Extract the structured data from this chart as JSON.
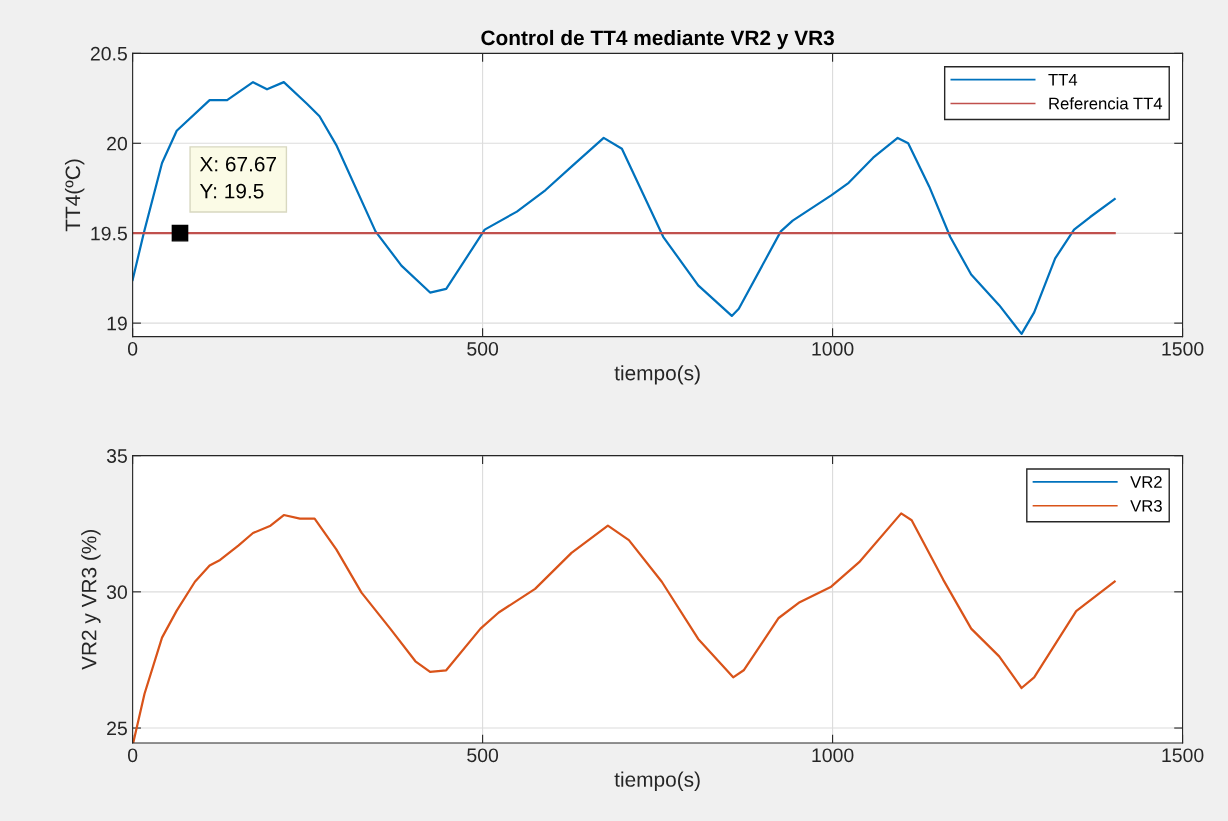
{
  "chart_data": [
    {
      "type": "line",
      "title": "Control de TT4 mediante VR2 y VR3",
      "xlabel": "tiempo(s)",
      "ylabel": "TT4(ºC)",
      "xlim": [
        0,
        1500
      ],
      "xticks": [
        0,
        500,
        1000,
        1500
      ],
      "ylim": [
        18.925,
        20.5
      ],
      "yticks": [
        19,
        19.5,
        20,
        20.5
      ],
      "grid": true,
      "legend": "top right",
      "series": [
        {
          "name": "TT4",
          "color": "#0072bd",
          "x": [
            0,
            16.5,
            42,
            63,
            110,
            135,
            172,
            192,
            216,
            249,
            267,
            291,
            347,
            384,
            425,
            448,
            503,
            549,
            590,
            627,
            673,
            699,
            758,
            808,
            856,
            866,
            926,
            943,
            998,
            1023,
            1058,
            1093,
            1108,
            1138,
            1168,
            1198,
            1238,
            1270,
            1288,
            1318,
            1345,
            1368,
            1403
          ],
          "values": [
            19.24,
            19.51,
            19.89,
            20.07,
            20.24,
            20.24,
            20.34,
            20.3,
            20.34,
            20.22,
            20.15,
            19.99,
            19.51,
            19.32,
            19.17,
            19.19,
            19.52,
            19.62,
            19.74,
            19.87,
            20.03,
            19.97,
            19.48,
            19.21,
            19.04,
            19.08,
            19.51,
            19.57,
            19.71,
            19.78,
            19.92,
            20.03,
            20.0,
            19.76,
            19.48,
            19.27,
            19.1,
            18.94,
            19.06,
            19.36,
            19.52,
            19.59,
            19.69
          ]
        },
        {
          "name": "Referencia TT4",
          "color": "#c0504d",
          "x": [
            0,
            1403
          ],
          "values": [
            19.5,
            19.5
          ]
        }
      ],
      "annotations": [
        {
          "text": "X: 67.67\nY: 19.5",
          "x": 67.67,
          "y": 19.5
        }
      ]
    },
    {
      "type": "line",
      "xlabel": "tiempo(s)",
      "ylabel": "VR2 y VR3 (%)",
      "xlim": [
        0,
        1500
      ],
      "xticks": [
        0,
        500,
        1000,
        1500
      ],
      "ylim": [
        24.45,
        35
      ],
      "yticks": [
        25,
        30,
        35
      ],
      "grid": true,
      "legend": "top right",
      "series": [
        {
          "name": "VR2",
          "color": "#0072bd"
        },
        {
          "name": "VR3",
          "color": "#d95319",
          "x": [
            1,
            17,
            42,
            63,
            89,
            110,
            125,
            151,
            172,
            197,
            216,
            239,
            260,
            291,
            327,
            368,
            404,
            425,
            448,
            497,
            523,
            575,
            627,
            679,
            709,
            756,
            808,
            858,
            873,
            923,
            953,
            998,
            1038,
            1098,
            1113,
            1158,
            1198,
            1238,
            1270,
            1288,
            1348,
            1403
          ],
          "values": [
            24.47,
            26.26,
            28.32,
            29.31,
            30.37,
            30.97,
            31.17,
            31.7,
            32.16,
            32.43,
            32.82,
            32.69,
            32.69,
            31.56,
            29.97,
            28.65,
            27.45,
            27.06,
            27.12,
            28.65,
            29.24,
            30.11,
            31.43,
            32.43,
            31.9,
            30.37,
            28.27,
            26.86,
            27.12,
            29.04,
            29.62,
            30.19,
            31.09,
            32.88,
            32.63,
            30.45,
            28.65,
            27.63,
            26.47,
            26.86,
            29.29,
            30.38
          ]
        }
      ]
    }
  ]
}
